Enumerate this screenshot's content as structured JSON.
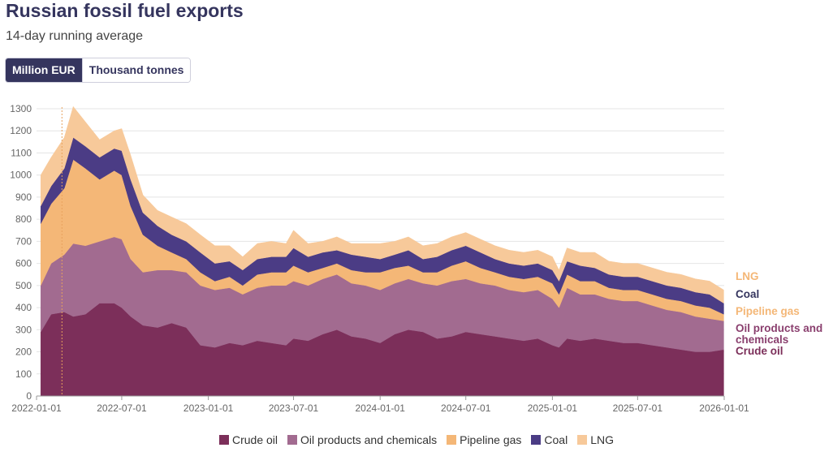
{
  "title": "Russian fossil fuel exports",
  "subtitle": "14-day running average",
  "units": [
    "Million EUR",
    "Thousand tonnes"
  ],
  "active_unit": "Million EUR",
  "colors": {
    "crude": "#7c2f5a",
    "oil_products": "#a26b90",
    "pipeline": "#f4b777",
    "coal": "#4b3c85",
    "lng": "#f7c99a",
    "text_dark": "#35355e"
  },
  "chart_data": {
    "type": "area",
    "stacked": true,
    "title": "Russian fossil fuel exports",
    "subtitle": "14-day running average",
    "ylabel": "",
    "xlabel": "",
    "ylim": [
      0,
      1300
    ],
    "yticks": [
      0,
      100,
      200,
      300,
      400,
      500,
      600,
      700,
      800,
      900,
      1000,
      1100,
      1200,
      1300
    ],
    "xticks": [
      "2022-01-01",
      "2022-07-01",
      "2023-01-01",
      "2023-07-01",
      "2024-01-01",
      "2024-07-01",
      "2025-01-01",
      "2025-07-01",
      "2026-01-01"
    ],
    "grid": true,
    "legend_position": "bottom",
    "annotation_date": "2022-02-24",
    "x": [
      "2022-01-10",
      "2022-02-01",
      "2022-03-01",
      "2022-03-20",
      "2022-04-15",
      "2022-05-15",
      "2022-06-15",
      "2022-07-01",
      "2022-07-20",
      "2022-08-15",
      "2022-09-15",
      "2022-10-15",
      "2022-11-15",
      "2022-12-15",
      "2023-01-15",
      "2023-02-15",
      "2023-03-15",
      "2023-04-15",
      "2023-05-15",
      "2023-06-15",
      "2023-07-01",
      "2023-08-01",
      "2023-09-01",
      "2023-10-01",
      "2023-11-01",
      "2023-12-01",
      "2024-01-01",
      "2024-02-01",
      "2024-03-01",
      "2024-04-01",
      "2024-05-01",
      "2024-06-01",
      "2024-07-01",
      "2024-08-01",
      "2024-09-01",
      "2024-10-01",
      "2024-11-01",
      "2024-12-01",
      "2025-01-01",
      "2025-01-15",
      "2025-02-01",
      "2025-03-01",
      "2025-04-01",
      "2025-05-01",
      "2025-06-01",
      "2025-07-01",
      "2025-08-01",
      "2025-09-01",
      "2025-10-01",
      "2025-11-01",
      "2025-12-01",
      "2025-12-31"
    ],
    "series": [
      {
        "name": "Crude oil",
        "color": "#7c2f5a",
        "values": [
          290,
          370,
          380,
          360,
          370,
          420,
          420,
          400,
          360,
          320,
          310,
          330,
          310,
          230,
          220,
          240,
          230,
          250,
          240,
          230,
          260,
          250,
          280,
          300,
          270,
          260,
          240,
          280,
          300,
          290,
          260,
          270,
          290,
          280,
          270,
          260,
          250,
          260,
          230,
          220,
          260,
          250,
          260,
          250,
          240,
          240,
          230,
          220,
          210,
          200,
          200,
          210
        ]
      },
      {
        "name": "Oil products and chemicals",
        "color": "#a26b90",
        "values": [
          210,
          230,
          260,
          330,
          310,
          280,
          300,
          310,
          260,
          240,
          260,
          240,
          250,
          270,
          260,
          250,
          230,
          240,
          260,
          270,
          260,
          250,
          250,
          250,
          240,
          240,
          240,
          230,
          230,
          220,
          240,
          250,
          240,
          230,
          230,
          220,
          220,
          220,
          210,
          180,
          230,
          210,
          200,
          190,
          190,
          190,
          180,
          170,
          170,
          160,
          150,
          130
        ]
      },
      {
        "name": "Pipeline gas",
        "color": "#f4b777",
        "values": [
          280,
          270,
          300,
          380,
          350,
          280,
          300,
          290,
          240,
          170,
          110,
          80,
          60,
          60,
          40,
          50,
          40,
          60,
          60,
          60,
          70,
          60,
          50,
          50,
          60,
          60,
          80,
          70,
          60,
          50,
          60,
          70,
          80,
          70,
          60,
          60,
          60,
          60,
          70,
          60,
          60,
          60,
          60,
          50,
          50,
          50,
          50,
          50,
          50,
          50,
          50,
          30
        ]
      },
      {
        "name": "Coal",
        "color": "#4b3c85",
        "values": [
          80,
          80,
          90,
          100,
          100,
          100,
          100,
          110,
          120,
          100,
          90,
          80,
          80,
          90,
          80,
          70,
          70,
          70,
          70,
          70,
          80,
          70,
          70,
          60,
          70,
          70,
          60,
          60,
          70,
          60,
          70,
          70,
          70,
          70,
          60,
          60,
          60,
          60,
          60,
          60,
          60,
          70,
          60,
          60,
          60,
          60,
          60,
          60,
          60,
          60,
          60,
          50
        ]
      },
      {
        "name": "LNG",
        "color": "#f7c99a",
        "values": [
          140,
          130,
          140,
          140,
          110,
          80,
          80,
          100,
          110,
          80,
          70,
          80,
          80,
          80,
          80,
          70,
          60,
          70,
          70,
          60,
          80,
          60,
          50,
          60,
          50,
          60,
          70,
          60,
          60,
          60,
          60,
          60,
          60,
          60,
          60,
          60,
          60,
          60,
          60,
          50,
          60,
          60,
          70,
          60,
          60,
          60,
          60,
          60,
          60,
          60,
          60,
          60
        ]
      }
    ]
  }
}
